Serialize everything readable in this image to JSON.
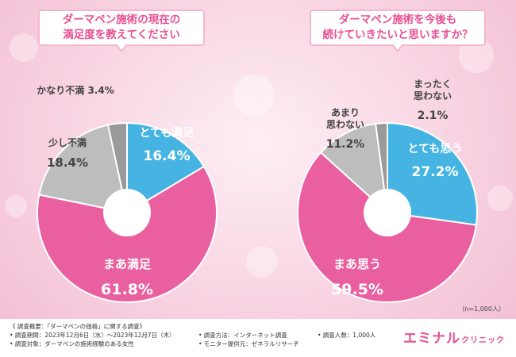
{
  "chart_data": [
    {
      "type": "pie",
      "title": "ダーマペン施術の現在の満足度を教えてください",
      "title_lines": [
        "ダーマペン施術の現在の",
        "満足度を教えてください"
      ],
      "categories": [
        "とても満足",
        "まあ満足",
        "少し不満",
        "かなり不満"
      ],
      "values": [
        16.4,
        61.8,
        18.4,
        3.4
      ],
      "colors": [
        "#46b4e2",
        "#e95f9f",
        "#bdbdbd",
        "#9a9a9a"
      ],
      "unit": "%"
    },
    {
      "type": "pie",
      "title": "ダーマペン施術を今後も続けていきたいと思いますか？",
      "title_lines": [
        "ダーマペン施術を今後も",
        "続けていきたいと思いますか？"
      ],
      "categories": [
        "とても思う",
        "まあ思う",
        "あまり思わない",
        "まったく思わない"
      ],
      "values": [
        27.2,
        59.5,
        11.2,
        2.1
      ],
      "colors": [
        "#46b4e2",
        "#e95f9f",
        "#bdbdbd",
        "#9a9a9a"
      ],
      "unit": "%"
    }
  ],
  "sample_size": "（n=1,000人）",
  "footer": {
    "summary": "《 調査概要：「ダーマペンの価格」に関する調査》",
    "period": "• 調査期間：2023年12月6日（水）〜2023年12月7日（木）",
    "target": "• 調査対象：ダーマペンの施術経験のある女性",
    "method": "• 調査方法：インターネット調査",
    "provider": "• モニター提供元：ゼネラルリサーチ",
    "count": "• 調査人数：1,000人"
  },
  "logo": {
    "main": "エミナル",
    "sub": "クリニック"
  }
}
